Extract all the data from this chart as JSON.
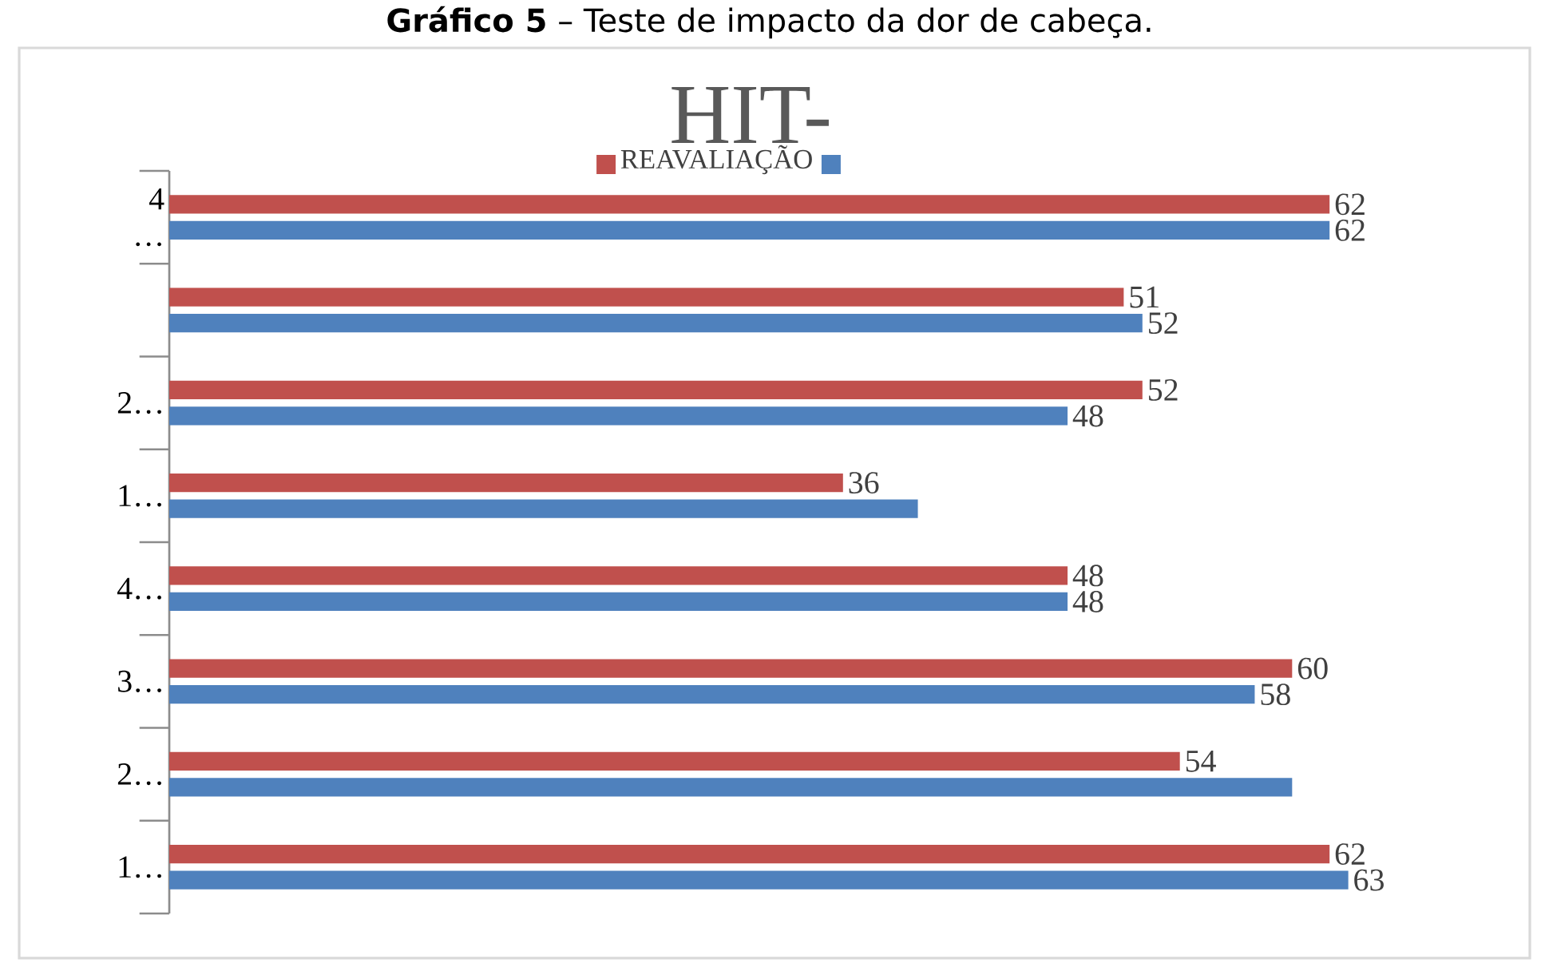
{
  "chart_data": {
    "type": "bar",
    "orientation": "horizontal",
    "title": "**Gráfico 5** – Teste de impacto da dor de cabeça.",
    "subtitle": "HIT-",
    "categories": [
      "4 …",
      null,
      "2…",
      "1…",
      "4…",
      "3…",
      "2…",
      "1…"
    ],
    "series": [
      {
        "name": "REAVALIAÇÃO",
        "color": "#c0504d",
        "values": [
          62,
          51,
          52,
          36,
          48,
          60,
          54,
          62
        ],
        "value_labels": [
          "62",
          "51",
          "52",
          "36",
          "48",
          "60",
          "54",
          "62"
        ]
      },
      {
        "color": "#4f81bd",
        "values": [
          62,
          52,
          48,
          40,
          48,
          58,
          60,
          63
        ],
        "value_labels": [
          "62",
          "52",
          "48",
          null,
          "48",
          "58",
          null,
          "63"
        ]
      }
    ],
    "legend": "top",
    "tick_labels": "y"
  }
}
